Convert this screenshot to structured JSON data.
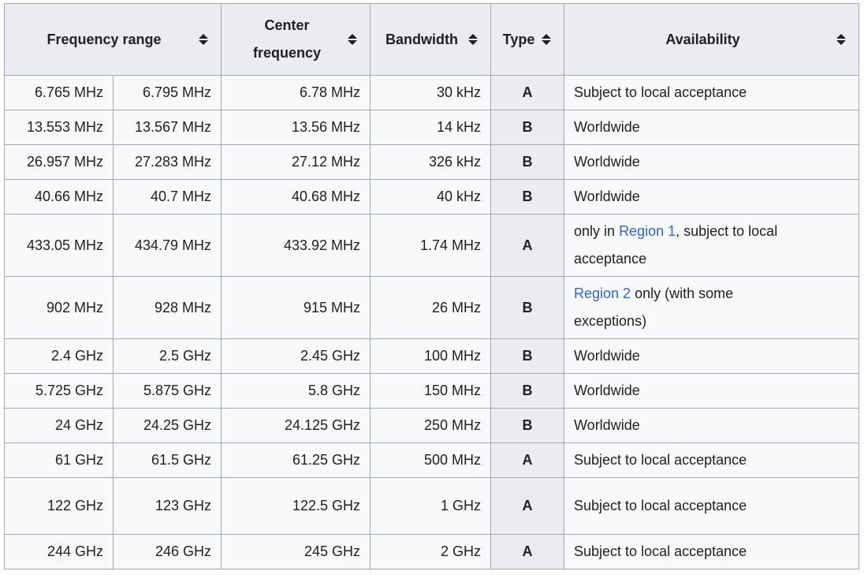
{
  "colors": {
    "header_background": "#eaecf0",
    "cell_background": "#f8f9fa",
    "border": "#a2a9b1",
    "text": "#202122",
    "link": "#3366cc"
  },
  "icons": {
    "sort": "up-down-triangles"
  },
  "table": {
    "headers": [
      {
        "label": "Frequency range",
        "sortable": true,
        "colspan": 2
      },
      {
        "label": "Center frequency",
        "sortable": true
      },
      {
        "label": "Bandwidth",
        "sortable": true
      },
      {
        "label": "Type",
        "sortable": true
      },
      {
        "label": "Availability",
        "sortable": true
      }
    ],
    "rows": [
      {
        "range_low": "6.765 MHz",
        "range_high": "6.795 MHz",
        "center": "6.78 MHz",
        "bandwidth": "30 kHz",
        "type": "A",
        "availability": [
          {
            "text": "Subject to local acceptance"
          }
        ]
      },
      {
        "range_low": "13.553 MHz",
        "range_high": "13.567 MHz",
        "center": "13.56 MHz",
        "bandwidth": "14 kHz",
        "type": "B",
        "availability": [
          {
            "text": "Worldwide"
          }
        ]
      },
      {
        "range_low": "26.957 MHz",
        "range_high": "27.283 MHz",
        "center": "27.12 MHz",
        "bandwidth": "326 kHz",
        "type": "B",
        "availability": [
          {
            "text": "Worldwide"
          }
        ]
      },
      {
        "range_low": "40.66 MHz",
        "range_high": "40.7 MHz",
        "center": "40.68 MHz",
        "bandwidth": "40 kHz",
        "type": "B",
        "availability": [
          {
            "text": "Worldwide"
          }
        ]
      },
      {
        "range_low": "433.05 MHz",
        "range_high": "434.79 MHz",
        "center": "433.92 MHz",
        "bandwidth": "1.74 MHz",
        "type": "A",
        "availability": [
          {
            "text": "only in "
          },
          {
            "text": "Region 1",
            "link": true
          },
          {
            "text": ", subject to local\nacceptance"
          }
        ]
      },
      {
        "range_low": "902 MHz",
        "range_high": "928 MHz",
        "center": "915 MHz",
        "bandwidth": "26 MHz",
        "type": "B",
        "availability": [
          {
            "text": "Region 2",
            "link": true
          },
          {
            "text": " only (with some\nexceptions)"
          }
        ]
      },
      {
        "range_low": "2.4 GHz",
        "range_high": "2.5 GHz",
        "center": "2.45 GHz",
        "bandwidth": "100 MHz",
        "type": "B",
        "availability": [
          {
            "text": "Worldwide"
          }
        ]
      },
      {
        "range_low": "5.725 GHz",
        "range_high": "5.875 GHz",
        "center": "5.8 GHz",
        "bandwidth": "150 MHz",
        "type": "B",
        "availability": [
          {
            "text": "Worldwide"
          }
        ]
      },
      {
        "range_low": "24 GHz",
        "range_high": "24.25 GHz",
        "center": "24.125 GHz",
        "bandwidth": "250 MHz",
        "type": "B",
        "availability": [
          {
            "text": "Worldwide"
          }
        ]
      },
      {
        "range_low": "61 GHz",
        "range_high": "61.5 GHz",
        "center": "61.25 GHz",
        "bandwidth": "500 MHz",
        "type": "A",
        "availability": [
          {
            "text": "Subject to local acceptance"
          }
        ]
      },
      {
        "range_low": "122 GHz",
        "range_high": "123 GHz",
        "center": "122.5 GHz",
        "bandwidth": "1 GHz",
        "type": "A",
        "tall": true,
        "availability": [
          {
            "text": "Subject to local acceptance"
          }
        ]
      },
      {
        "range_low": "244 GHz",
        "range_high": "246 GHz",
        "center": "245 GHz",
        "bandwidth": "2 GHz",
        "type": "A",
        "availability": [
          {
            "text": "Subject to local acceptance"
          }
        ]
      }
    ]
  }
}
